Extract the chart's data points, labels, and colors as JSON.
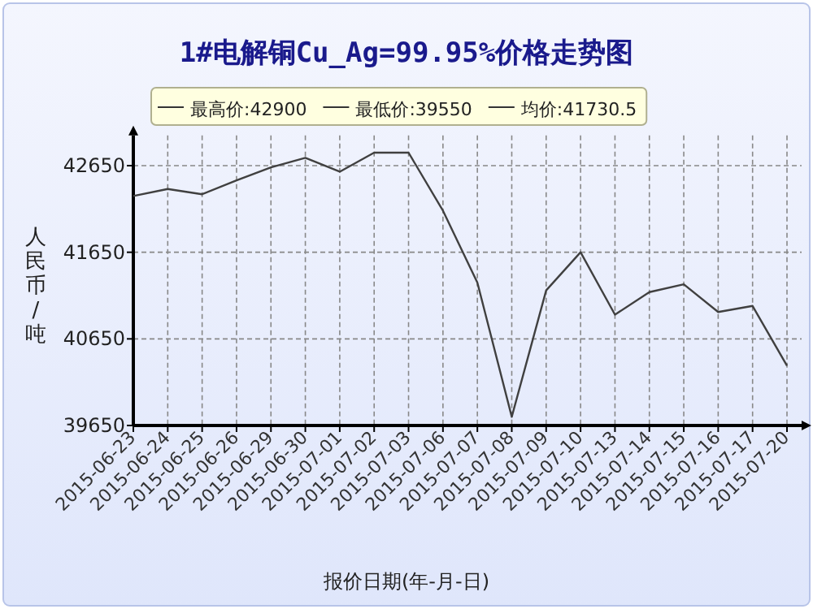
{
  "chart_data": {
    "type": "line",
    "title": "1#电解铜Cu_Ag=99.95%价格走势图",
    "xlabel": "报价日期(年-月-日)",
    "ylabel": "人民币/吨",
    "annotations": [
      "最高价:42900",
      "最低价:39550",
      "均价:41730.5"
    ],
    "categories": [
      "2015-06-23",
      "2015-06-24",
      "2015-06-25",
      "2015-06-26",
      "2015-06-29",
      "2015-06-30",
      "2015-07-01",
      "2015-07-02",
      "2015-07-03",
      "2015-07-06",
      "2015-07-07",
      "2015-07-08",
      "2015-07-09",
      "2015-07-10",
      "2015-07-13",
      "2015-07-14",
      "2015-07-15",
      "2015-07-16",
      "2015-07-17",
      "2015-07-20"
    ],
    "series": [
      {
        "color": "#404040",
        "values": [
          42300,
          42380,
          42320,
          42480,
          42630,
          42740,
          42580,
          42800,
          42800,
          42130,
          41300,
          39750,
          41210,
          41650,
          40930,
          41190,
          41280,
          40960,
          41030,
          40340
        ]
      }
    ],
    "ylim": [
      39650,
      43000
    ],
    "yticks": [
      39650,
      40650,
      41650,
      42650
    ],
    "grid": true,
    "marker": "none",
    "line_style": "solid"
  }
}
